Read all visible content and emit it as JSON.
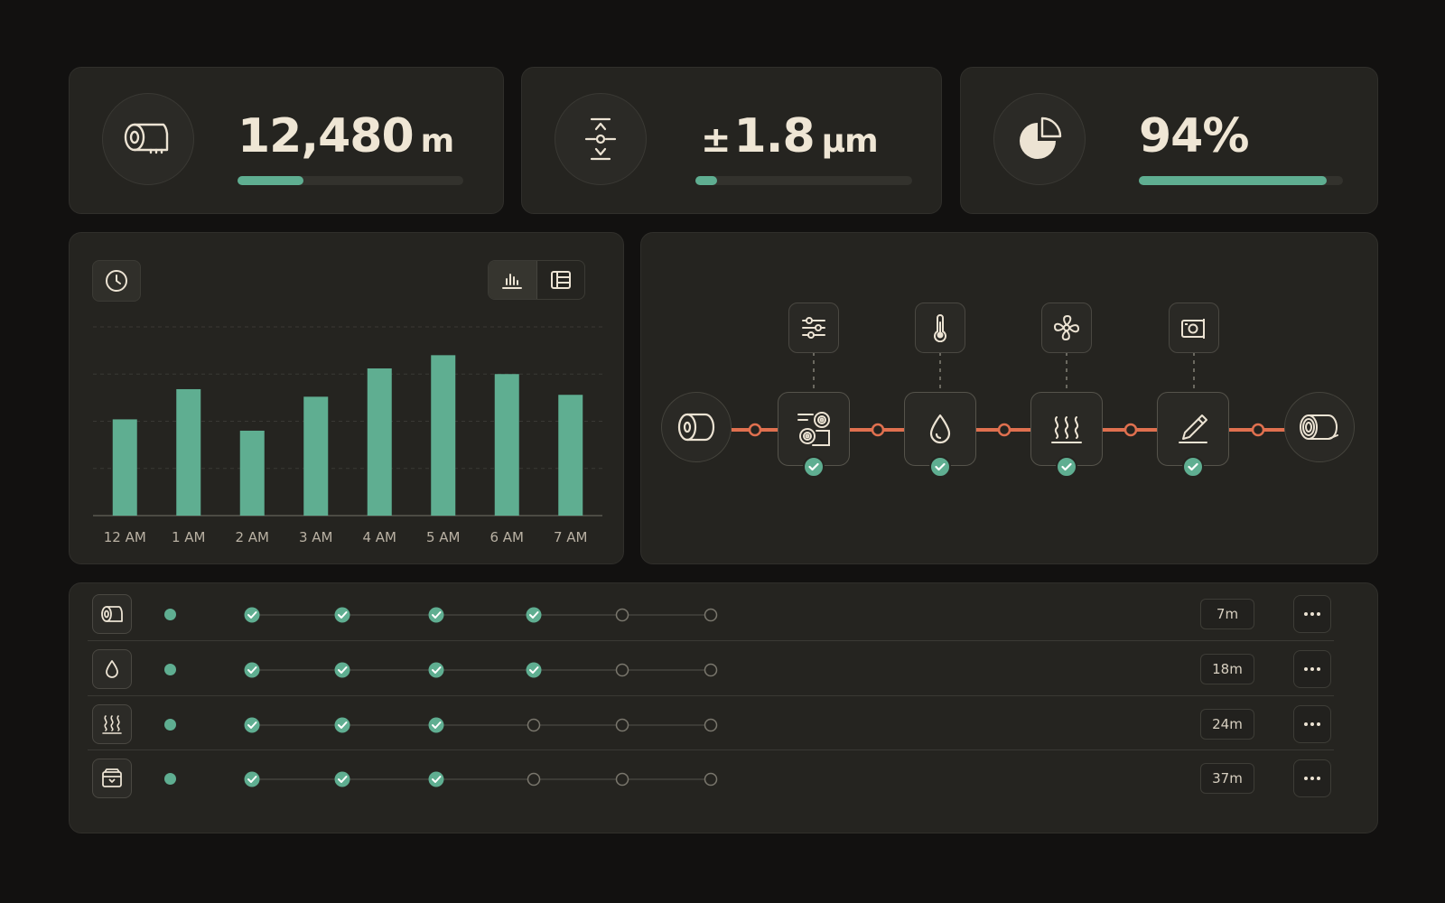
{
  "kpis": [
    {
      "value": "12,480",
      "unit": "m",
      "icon": "paper-roll-icon",
      "progress": 0.29
    },
    {
      "prefix": "±",
      "value": "1.8",
      "unit": "µm",
      "icon": "thickness-gauge-icon",
      "progress": 0.1
    },
    {
      "value": "94%",
      "unit": "",
      "icon": "pie-chart-icon",
      "progress": 0.92
    }
  ],
  "chart_data": {
    "type": "bar",
    "categories": [
      "12 AM",
      "1 AM",
      "2 AM",
      "3 AM",
      "4 AM",
      "5 AM",
      "6 AM",
      "7 AM"
    ],
    "values": [
      51,
      67,
      45,
      63,
      78,
      85,
      75,
      64
    ],
    "ylim": [
      0,
      100
    ],
    "grid": true,
    "bar_color": "#5fae91"
  },
  "chart_controls": {
    "history_icon": "clock-icon",
    "view_options": [
      "bar-chart-icon",
      "table-view-icon"
    ],
    "active_view": "bar-chart-icon"
  },
  "pipeline": {
    "start_icon": "input-roll-icon",
    "end_icon": "output-roll-icon",
    "stages": [
      {
        "icon": "unwind-rolls-icon",
        "control_icon": "sliders-icon",
        "complete": true
      },
      {
        "icon": "droplet-icon",
        "control_icon": "thermometer-icon",
        "complete": true
      },
      {
        "icon": "heat-waves-icon",
        "control_icon": "fan-icon",
        "complete": true
      },
      {
        "icon": "pen-coating-icon",
        "control_icon": "camera-icon",
        "complete": true
      }
    ],
    "connector_color": "#e0704f"
  },
  "rows": [
    {
      "icon": "paper-roll-icon",
      "steps": [
        true,
        true,
        true,
        true,
        false,
        false
      ],
      "duration": "7m"
    },
    {
      "icon": "droplet-icon",
      "steps": [
        true,
        true,
        true,
        true,
        false,
        false
      ],
      "duration": "18m"
    },
    {
      "icon": "heat-waves-icon",
      "steps": [
        true,
        true,
        true,
        false,
        false,
        false
      ],
      "duration": "24m"
    },
    {
      "icon": "box-icon",
      "steps": [
        true,
        true,
        true,
        false,
        false,
        false
      ],
      "duration": "37m"
    }
  ],
  "colors": {
    "accent": "#5fae91",
    "pipeline": "#e0704f",
    "background": "#121110",
    "card": "#252420",
    "text": "#efe6d5"
  }
}
